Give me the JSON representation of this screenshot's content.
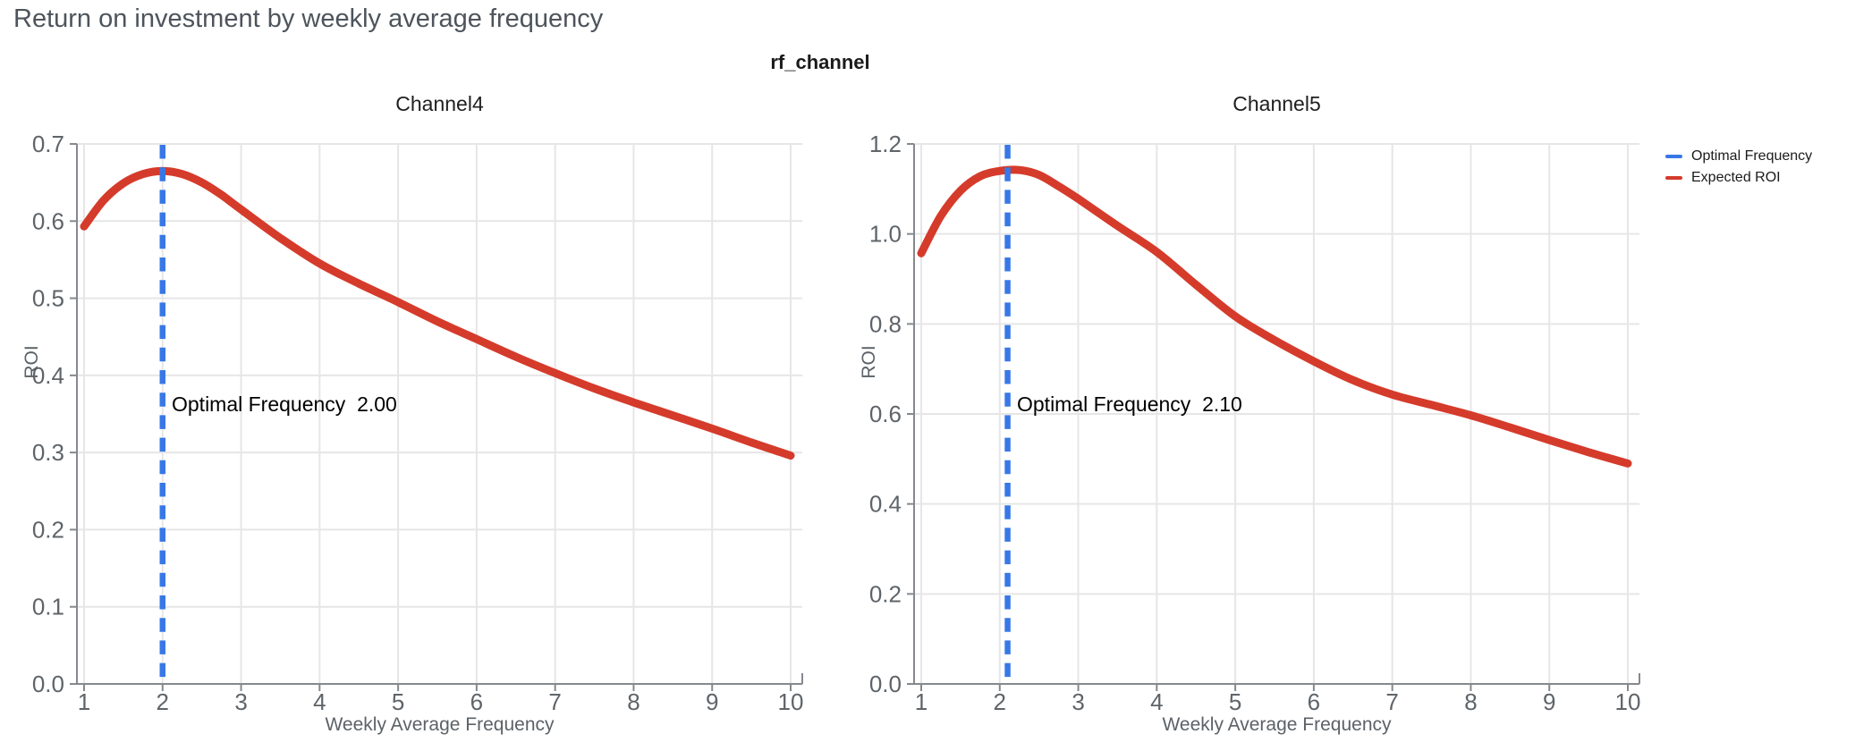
{
  "page": {
    "title": "Return on investment by weekly average frequency"
  },
  "facet_title": "rf_channel",
  "legend": [
    {
      "label": "Optimal Frequency",
      "color": "#3878e6"
    },
    {
      "label": "Expected ROI",
      "color": "#d53b2b"
    }
  ],
  "colors": {
    "series_red": "#d53b2b",
    "optimal_blue": "#3878e6",
    "gridline": "#e6e6e6",
    "axis_line": "#85898e",
    "tick_text": "#5f6469",
    "title_text": "#4d545c"
  },
  "chart_data": [
    {
      "type": "line",
      "title": "Channel4",
      "xlabel": "Weekly Average Frequency",
      "ylabel": "ROI",
      "xlim": [
        1,
        10
      ],
      "ylim": [
        0,
        0.7
      ],
      "grid": true,
      "xticks": [
        1,
        2,
        3,
        4,
        5,
        6,
        7,
        8,
        9,
        10
      ],
      "xtick_labels": [
        "1",
        "2",
        "3",
        "4",
        "5",
        "6",
        "7",
        "8",
        "9",
        "10"
      ],
      "yticks": [
        0,
        0.1,
        0.2,
        0.3,
        0.4,
        0.5,
        0.6,
        0.7
      ],
      "ytick_labels": [
        "0.0",
        "0.1",
        "0.2",
        "0.3",
        "0.4",
        "0.5",
        "0.6",
        "0.7"
      ],
      "optimal_frequency": 2.0,
      "annotation": "Optimal Frequency  2.00",
      "series": [
        {
          "name": "Expected ROI",
          "x": [
            1,
            1.25,
            1.5,
            1.75,
            2,
            2.25,
            2.5,
            2.75,
            3,
            3.5,
            4,
            4.5,
            5,
            5.5,
            6,
            6.5,
            7,
            7.5,
            8,
            8.5,
            9,
            9.5,
            10
          ],
          "y": [
            0.593,
            0.627,
            0.649,
            0.661,
            0.665,
            0.661,
            0.65,
            0.634,
            0.615,
            0.578,
            0.545,
            0.519,
            0.495,
            0.47,
            0.447,
            0.424,
            0.403,
            0.383,
            0.365,
            0.348,
            0.331,
            0.313,
            0.296
          ]
        }
      ]
    },
    {
      "type": "line",
      "title": "Channel5",
      "xlabel": "Weekly Average Frequency",
      "ylabel": "ROI",
      "xlim": [
        1,
        10
      ],
      "ylim": [
        0,
        1.2
      ],
      "grid": true,
      "xticks": [
        1,
        2,
        3,
        4,
        5,
        6,
        7,
        8,
        9,
        10
      ],
      "xtick_labels": [
        "1",
        "2",
        "3",
        "4",
        "5",
        "6",
        "7",
        "8",
        "9",
        "10"
      ],
      "yticks": [
        0,
        0.2,
        0.4,
        0.6,
        0.8,
        1.0,
        1.2
      ],
      "ytick_labels": [
        "0.0",
        "0.2",
        "0.4",
        "0.6",
        "0.8",
        "1.0",
        "1.2"
      ],
      "optimal_frequency": 2.1,
      "annotation": "Optimal Frequency  2.10",
      "series": [
        {
          "name": "Expected ROI",
          "x": [
            1,
            1.25,
            1.5,
            1.75,
            2,
            2.25,
            2.5,
            2.75,
            3,
            3.5,
            4,
            4.5,
            5,
            5.5,
            6,
            6.5,
            7,
            7.5,
            8,
            8.5,
            9,
            9.5,
            10
          ],
          "y": [
            0.957,
            1.04,
            1.096,
            1.128,
            1.14,
            1.142,
            1.131,
            1.106,
            1.078,
            1.018,
            0.96,
            0.887,
            0.817,
            0.764,
            0.717,
            0.675,
            0.643,
            0.62,
            0.597,
            0.57,
            0.542,
            0.515,
            0.49
          ]
        }
      ]
    }
  ]
}
